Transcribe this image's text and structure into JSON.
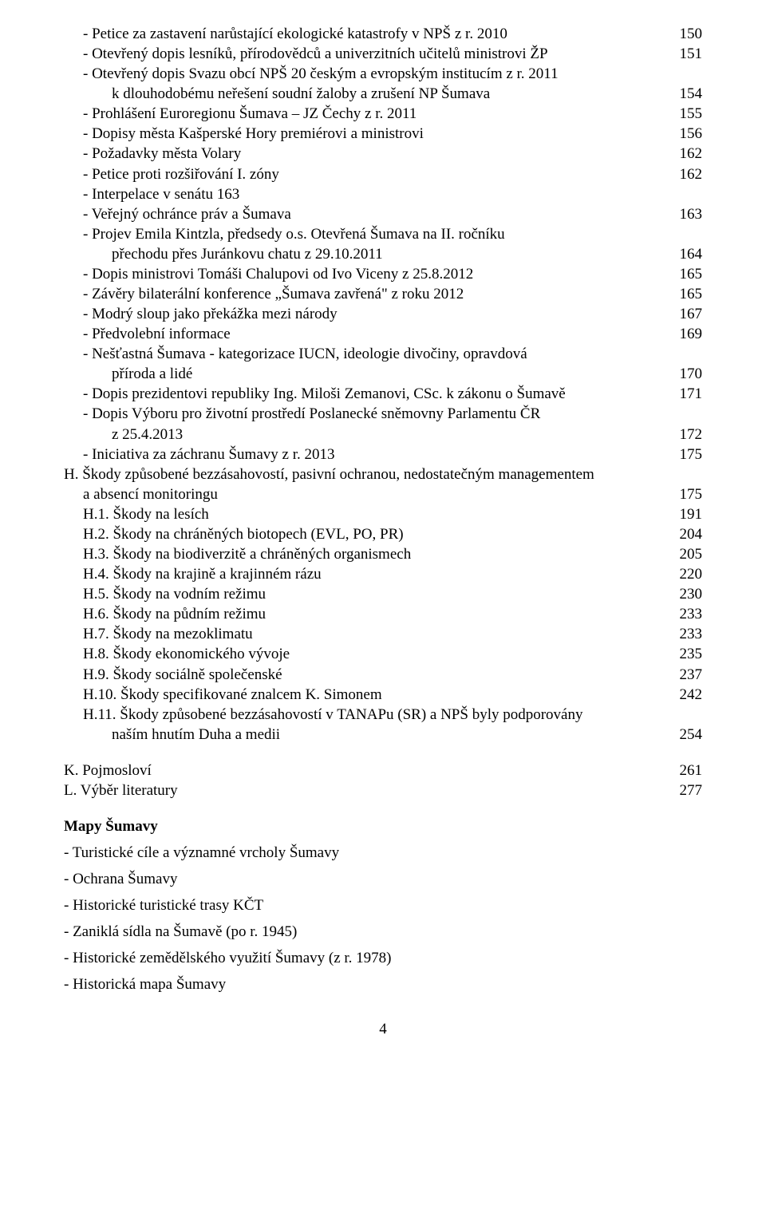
{
  "toc": [
    {
      "text": "- Petice za zastavení narůstající ekologické katastrofy v NPŠ z r. 2010",
      "page": "150",
      "indent": 1
    },
    {
      "text": "- Otevřený dopis lesníků, přírodovědců a univerzitních učitelů ministrovi ŽP",
      "page": "151",
      "indent": 1
    },
    {
      "text": "- Otevřený dopis Svazu obcí NPŠ 20 českým a evropským institucím z r. 2011",
      "page": "",
      "indent": 1
    },
    {
      "text": "k dlouhodobému neřešení soudní žaloby a zrušení NP Šumava",
      "page": "154",
      "indent": 2
    },
    {
      "text": "- Prohlášení Euroregionu Šumava – JZ Čechy z r. 2011",
      "page": "155",
      "indent": 1
    },
    {
      "text": "- Dopisy města Kašperské Hory premiérovi a ministrovi",
      "page": "156",
      "indent": 1
    },
    {
      "text": "- Požadavky města Volary",
      "page": "162",
      "indent": 1
    },
    {
      "text": "- Petice proti rozšiřování I. zóny",
      "page": "162",
      "indent": 1
    },
    {
      "text": "- Interpelace v senátu 163",
      "page": "",
      "indent": 1
    },
    {
      "text": "- Veřejný ochránce práv a Šumava",
      "page": "163",
      "indent": 1
    },
    {
      "text": "- Projev Emila Kintzla, předsedy o.s. Otevřená Šumava na II. ročníku",
      "page": "",
      "indent": 1
    },
    {
      "text": "přechodu přes Juránkovu chatu z 29.10.2011",
      "page": "164",
      "indent": 2
    },
    {
      "text": "- Dopis ministrovi Tomáši Chalupovi od Ivo Viceny z 25.8.2012",
      "page": "165",
      "indent": 1
    },
    {
      "text": "- Závěry bilaterální konference „Šumava zavřená\" z roku 2012",
      "page": "165",
      "indent": 1
    },
    {
      "text": "- Modrý sloup jako překážka mezi národy",
      "page": "167",
      "indent": 1
    },
    {
      "text": "- Předvolební informace",
      "page": "169",
      "indent": 1
    },
    {
      "text": "- Nešťastná Šumava - kategorizace IUCN, ideologie divočiny, opravdová",
      "page": "",
      "indent": 1
    },
    {
      "text": "příroda a lidé",
      "page": "170",
      "indent": 2
    },
    {
      "text": "- Dopis prezidentovi republiky Ing. Miloši Zemanovi, CSc. k zákonu o Šumavě",
      "page": "171",
      "indent": 1
    },
    {
      "text": "- Dopis Výboru pro životní prostředí Poslanecké sněmovny Parlamentu ČR",
      "page": "",
      "indent": 1
    },
    {
      "text": "z 25.4.2013",
      "page": "172",
      "indent": 2
    },
    {
      "text": "- Iniciativa za záchranu Šumavy z r. 2013",
      "page": "175",
      "indent": 1
    },
    {
      "text": "H. Škody způsobené bezzásahovostí, pasivní ochranou, nedostatečným managementem",
      "page": "",
      "indent": 0
    },
    {
      "text": "a absencí monitoringu",
      "page": "175",
      "indent": 1
    },
    {
      "text": "H.1. Škody na lesích",
      "page": "191",
      "indent": 1
    },
    {
      "text": "H.2. Škody na chráněných biotopech (EVL, PO, PR)",
      "page": "204",
      "indent": 1
    },
    {
      "text": "H.3. Škody na biodiverzitě a chráněných organismech",
      "page": "205",
      "indent": 1
    },
    {
      "text": "H.4. Škody na krajině a krajinném rázu",
      "page": "220",
      "indent": 1
    },
    {
      "text": "H.5. Škody na vodním režimu",
      "page": "230",
      "indent": 1
    },
    {
      "text": "H.6. Škody na půdním režimu",
      "page": "233",
      "indent": 1
    },
    {
      "text": "H.7. Škody na mezoklimatu",
      "page": "233",
      "indent": 1
    },
    {
      "text": "H.8. Škody ekonomického vývoje",
      "page": "235",
      "indent": 1
    },
    {
      "text": "H.9. Škody sociálně společenské",
      "page": "237",
      "indent": 1
    },
    {
      "text": "H.10. Škody specifikované znalcem K. Simonem",
      "page": "242",
      "indent": 1
    },
    {
      "text": "H.11. Škody způsobené bezzásahovostí v TANAPu (SR) a NPŠ byly podporovány",
      "page": "",
      "indent": 1
    },
    {
      "text": "naším hnutím Duha a medii",
      "page": "254",
      "indent": 3
    }
  ],
  "bottom": [
    {
      "text": "K. Pojmosloví",
      "page": "261"
    },
    {
      "text": "L. Výběr literatury",
      "page": "277"
    }
  ],
  "maps_heading": "Mapy Šumavy",
  "maps": [
    "- Turistické cíle a významné vrcholy Šumavy",
    "- Ochrana Šumavy",
    "- Historické turistické trasy KČT",
    "- Zaniklá sídla na Šumavě (po r. 1945)",
    "- Historické zemědělského využití Šumavy (z r. 1978)",
    "- Historická mapa Šumavy"
  ],
  "page_number": "4"
}
